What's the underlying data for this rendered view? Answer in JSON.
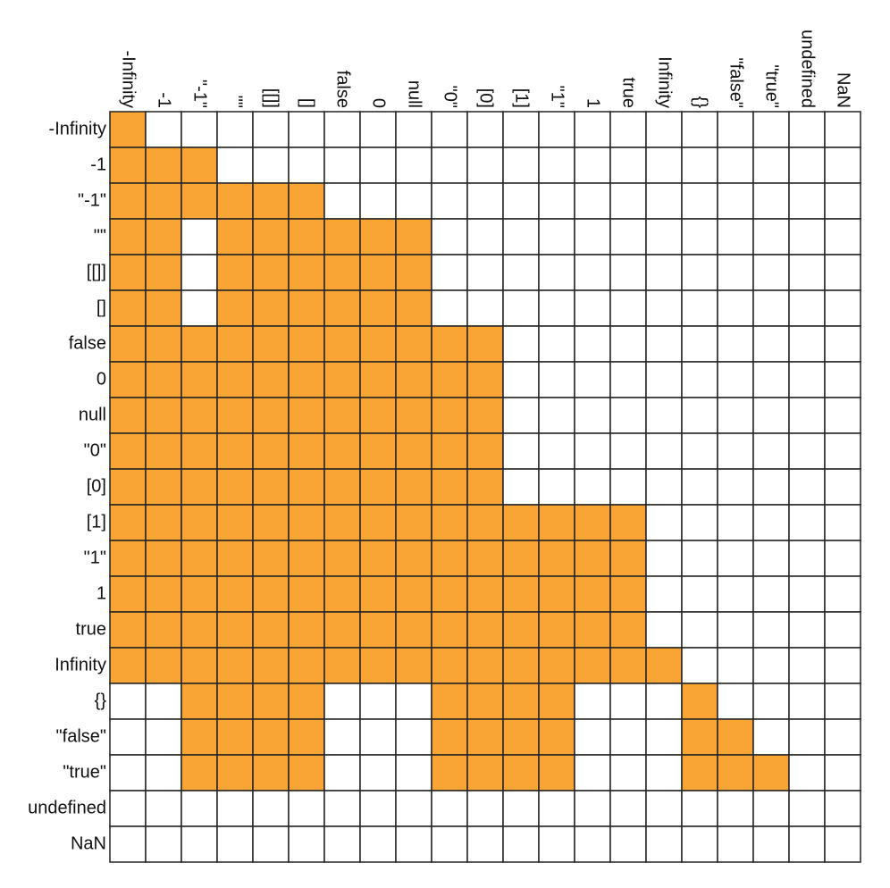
{
  "labels": [
    "-Infinity",
    "-1",
    "\"-1\"",
    "\"\"",
    "[[]]",
    "[]",
    "false",
    "0",
    "null",
    "\"0\"",
    "[0]",
    "[1]",
    "\"1\"",
    "1",
    "true",
    "Infinity",
    "{}",
    "\"false\"",
    "\"true\"",
    "undefined",
    "NaN"
  ],
  "color": "#f9a535",
  "cells": [
    [
      1,
      0,
      0,
      0,
      0,
      0,
      0,
      0,
      0,
      0,
      0,
      0,
      0,
      0,
      0,
      0,
      0,
      0,
      0,
      0,
      0
    ],
    [
      1,
      1,
      1,
      0,
      0,
      0,
      0,
      0,
      0,
      0,
      0,
      0,
      0,
      0,
      0,
      0,
      0,
      0,
      0,
      0,
      0
    ],
    [
      1,
      1,
      1,
      1,
      1,
      1,
      0,
      0,
      0,
      0,
      0,
      0,
      0,
      0,
      0,
      0,
      0,
      0,
      0,
      0,
      0
    ],
    [
      1,
      1,
      0,
      1,
      1,
      1,
      1,
      1,
      1,
      0,
      0,
      0,
      0,
      0,
      0,
      0,
      0,
      0,
      0,
      0,
      0
    ],
    [
      1,
      1,
      0,
      1,
      1,
      1,
      1,
      1,
      1,
      0,
      0,
      0,
      0,
      0,
      0,
      0,
      0,
      0,
      0,
      0,
      0
    ],
    [
      1,
      1,
      0,
      1,
      1,
      1,
      1,
      1,
      1,
      0,
      0,
      0,
      0,
      0,
      0,
      0,
      0,
      0,
      0,
      0,
      0
    ],
    [
      1,
      1,
      1,
      1,
      1,
      1,
      1,
      1,
      1,
      1,
      1,
      0,
      0,
      0,
      0,
      0,
      0,
      0,
      0,
      0,
      0
    ],
    [
      1,
      1,
      1,
      1,
      1,
      1,
      1,
      1,
      1,
      1,
      1,
      0,
      0,
      0,
      0,
      0,
      0,
      0,
      0,
      0,
      0
    ],
    [
      1,
      1,
      1,
      1,
      1,
      1,
      1,
      1,
      1,
      1,
      1,
      0,
      0,
      0,
      0,
      0,
      0,
      0,
      0,
      0,
      0
    ],
    [
      1,
      1,
      1,
      1,
      1,
      1,
      1,
      1,
      1,
      1,
      1,
      0,
      0,
      0,
      0,
      0,
      0,
      0,
      0,
      0,
      0
    ],
    [
      1,
      1,
      1,
      1,
      1,
      1,
      1,
      1,
      1,
      1,
      1,
      0,
      0,
      0,
      0,
      0,
      0,
      0,
      0,
      0,
      0
    ],
    [
      1,
      1,
      1,
      1,
      1,
      1,
      1,
      1,
      1,
      1,
      1,
      1,
      1,
      1,
      1,
      0,
      0,
      0,
      0,
      0,
      0
    ],
    [
      1,
      1,
      1,
      1,
      1,
      1,
      1,
      1,
      1,
      1,
      1,
      1,
      1,
      1,
      1,
      0,
      0,
      0,
      0,
      0,
      0
    ],
    [
      1,
      1,
      1,
      1,
      1,
      1,
      1,
      1,
      1,
      1,
      1,
      1,
      1,
      1,
      1,
      0,
      0,
      0,
      0,
      0,
      0
    ],
    [
      1,
      1,
      1,
      1,
      1,
      1,
      1,
      1,
      1,
      1,
      1,
      1,
      1,
      1,
      1,
      0,
      0,
      0,
      0,
      0,
      0
    ],
    [
      1,
      1,
      1,
      1,
      1,
      1,
      1,
      1,
      1,
      1,
      1,
      1,
      1,
      1,
      1,
      1,
      0,
      0,
      0,
      0,
      0
    ],
    [
      0,
      0,
      1,
      1,
      1,
      1,
      0,
      0,
      0,
      1,
      1,
      1,
      1,
      0,
      0,
      0,
      1,
      0,
      0,
      0,
      0
    ],
    [
      0,
      0,
      1,
      1,
      1,
      1,
      0,
      0,
      0,
      1,
      1,
      1,
      1,
      0,
      0,
      0,
      1,
      1,
      0,
      0,
      0
    ],
    [
      0,
      0,
      1,
      1,
      1,
      1,
      0,
      0,
      0,
      1,
      1,
      1,
      1,
      0,
      0,
      0,
      1,
      1,
      1,
      0,
      0
    ],
    [
      0,
      0,
      0,
      0,
      0,
      0,
      0,
      0,
      0,
      0,
      0,
      0,
      0,
      0,
      0,
      0,
      0,
      0,
      0,
      0,
      0
    ],
    [
      0,
      0,
      0,
      0,
      0,
      0,
      0,
      0,
      0,
      0,
      0,
      0,
      0,
      0,
      0,
      0,
      0,
      0,
      0,
      0,
      0
    ]
  ]
}
